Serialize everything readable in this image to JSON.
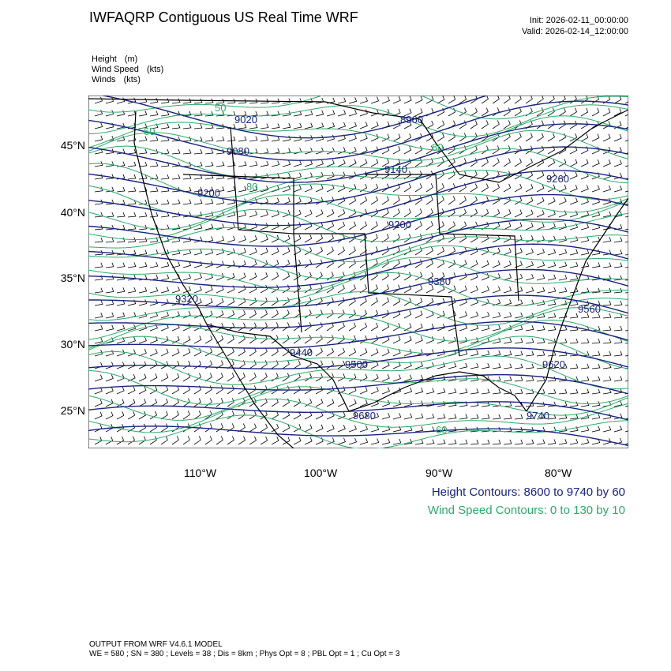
{
  "header": {
    "title": "IWFAQRP Contiguous US Real Time WRF",
    "init": "Init: 2026-02-11_00:00:00",
    "valid": "Valid: 2026-02-14_12:00:00"
  },
  "variables": [
    {
      "name": "Height",
      "unit": "(m)"
    },
    {
      "name": "Wind Speed",
      "unit": "(kts)"
    },
    {
      "name": "Winds",
      "unit": "(kts)"
    }
  ],
  "axes": {
    "lat_labels": [
      "45°N",
      "40°N",
      "35°N",
      "30°N",
      "25°N"
    ],
    "lon_labels": [
      "110°W",
      "100°W",
      "90°W",
      "80°W"
    ]
  },
  "map": {
    "projection": "Lambert conformal (CONUS)",
    "height_contour_labels": [
      "8960",
      "9020",
      "9080",
      "9140",
      "9200",
      "9200",
      "9260",
      "9320",
      "9380",
      "9440",
      "9500",
      "9560",
      "9620",
      "9680",
      "9740"
    ],
    "wind_contour_labels": [
      "50",
      "60",
      "80",
      "80",
      "60"
    ],
    "colors": {
      "height": "#1a237e",
      "wind": "#2eaa6a",
      "borders": "#000000"
    }
  },
  "legend": {
    "height_contours": "Height Contours: 8600 to 9740 by 60",
    "wind_contours": "Wind Speed Contours: 0 to 130 by 10"
  },
  "footer": {
    "line1": "OUTPUT FROM WRF V4.6.1 MODEL",
    "line2": "WE = 580 ; SN = 380 ; Levels = 38 ; Dis = 8km ; Phys Opt = 8 ; PBL Opt = 1 ; Cu Opt = 3"
  }
}
